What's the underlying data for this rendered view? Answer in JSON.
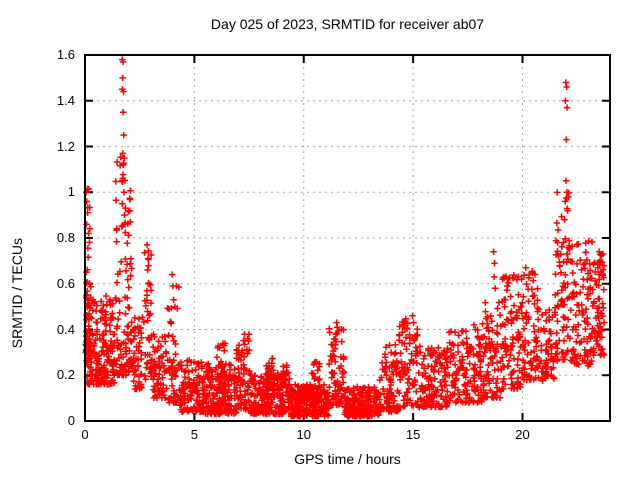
{
  "chart_data": {
    "type": "scatter",
    "title": "Day 025 of 2023, SRMTID for receiver ab07",
    "xlabel": "GPS time / hours",
    "ylabel": "SRMTID / TECUs",
    "xlim": [
      0,
      24
    ],
    "ylim": [
      0,
      1.6
    ],
    "x_ticks": {
      "values": [
        0,
        5,
        10,
        15,
        20
      ],
      "labels": [
        "0",
        "5",
        "10",
        "15",
        "20"
      ]
    },
    "y_ticks": {
      "values": [
        0,
        0.2,
        0.4,
        0.6,
        0.8,
        1.0,
        1.2,
        1.4,
        1.6
      ],
      "labels": [
        "0",
        "0.2",
        "0.4",
        "0.6",
        "0.8",
        "1",
        "1.2",
        "1.4",
        "1.6"
      ]
    },
    "grid": true,
    "legend": "none",
    "marker": "plus",
    "colors": {
      "points": "#ff0000",
      "grid": "#a6a6a6",
      "frame": "#000000",
      "background": "#ffffff",
      "text": "#000000"
    },
    "description": "Dense scatter of red plus markers forming a U-shape: values up to 1.6 TECUs near hours 0-2, a low noisy band of 0.02-0.2 TECUs through hours 5-18, rising again after hour 19 with a spike to ~1.48 near hour 22.",
    "density_bands": [
      {
        "x": [
          0.02,
          0.28
        ],
        "y": [
          0.3,
          1.02
        ],
        "n": 45,
        "skew": 2.4
      },
      {
        "x": [
          0.05,
          1.35
        ],
        "y": [
          0.16,
          0.56
        ],
        "n": 200,
        "skew": 1.7
      },
      {
        "x": [
          1.38,
          2.15
        ],
        "y": [
          0.2,
          1.18
        ],
        "n": 110,
        "skew": 1.9
      },
      {
        "x": [
          2.15,
          2.65
        ],
        "y": [
          0.14,
          0.46
        ],
        "n": 50,
        "skew": 1.5
      },
      {
        "x": [
          2.68,
          3.08
        ],
        "y": [
          0.18,
          0.75
        ],
        "n": 40,
        "skew": 1.6
      },
      {
        "x": [
          3.1,
          3.75
        ],
        "y": [
          0.1,
          0.4
        ],
        "n": 60,
        "skew": 1.6
      },
      {
        "x": [
          3.75,
          4.3
        ],
        "y": [
          0.08,
          0.62
        ],
        "n": 55,
        "skew": 1.8
      },
      {
        "x": [
          4.3,
          5.45
        ],
        "y": [
          0.04,
          0.27
        ],
        "n": 120,
        "skew": 1.7
      },
      {
        "x": [
          5.45,
          6.9
        ],
        "y": [
          0.03,
          0.25
        ],
        "n": 170,
        "skew": 1.6
      },
      {
        "x": [
          6.0,
          6.45
        ],
        "y": [
          0.12,
          0.35
        ],
        "n": 30,
        "skew": 1.5
      },
      {
        "x": [
          6.9,
          7.55
        ],
        "y": [
          0.05,
          0.38
        ],
        "n": 80,
        "skew": 1.7
      },
      {
        "x": [
          7.55,
          9.35
        ],
        "y": [
          0.03,
          0.21
        ],
        "n": 220,
        "skew": 1.5
      },
      {
        "x": [
          8.25,
          8.7
        ],
        "y": [
          0.08,
          0.3
        ],
        "n": 30,
        "skew": 1.4
      },
      {
        "x": [
          9.0,
          9.35
        ],
        "y": [
          0.08,
          0.27
        ],
        "n": 20,
        "skew": 1.4
      },
      {
        "x": [
          9.35,
          11.15
        ],
        "y": [
          0.02,
          0.16
        ],
        "n": 230,
        "skew": 1.4
      },
      {
        "x": [
          10.35,
          10.75
        ],
        "y": [
          0.08,
          0.26
        ],
        "n": 25,
        "skew": 1.4
      },
      {
        "x": [
          11.15,
          11.85
        ],
        "y": [
          0.07,
          0.42
        ],
        "n": 80,
        "skew": 1.7
      },
      {
        "x": [
          11.85,
          13.45
        ],
        "y": [
          0.02,
          0.15
        ],
        "n": 200,
        "skew": 1.4
      },
      {
        "x": [
          13.45,
          14.35
        ],
        "y": [
          0.04,
          0.34
        ],
        "n": 90,
        "skew": 1.6
      },
      {
        "x": [
          14.35,
          15.25
        ],
        "y": [
          0.06,
          0.45
        ],
        "n": 85,
        "skew": 1.6
      },
      {
        "x": [
          15.25,
          16.6
        ],
        "y": [
          0.06,
          0.33
        ],
        "n": 130,
        "skew": 1.6
      },
      {
        "x": [
          16.6,
          18.15
        ],
        "y": [
          0.08,
          0.4
        ],
        "n": 140,
        "skew": 1.5
      },
      {
        "x": [
          18.15,
          19.05
        ],
        "y": [
          0.1,
          0.52
        ],
        "n": 90,
        "skew": 1.5
      },
      {
        "x": [
          19.05,
          20.0
        ],
        "y": [
          0.14,
          0.64
        ],
        "n": 100,
        "skew": 1.5
      },
      {
        "x": [
          20.0,
          20.7
        ],
        "y": [
          0.18,
          0.66
        ],
        "n": 70,
        "skew": 1.4
      },
      {
        "x": [
          20.7,
          21.45
        ],
        "y": [
          0.17,
          0.5
        ],
        "n": 65,
        "skew": 1.4
      },
      {
        "x": [
          21.45,
          22.25
        ],
        "y": [
          0.26,
          1.02
        ],
        "n": 85,
        "skew": 1.7
      },
      {
        "x": [
          22.25,
          23.3
        ],
        "y": [
          0.24,
          0.8
        ],
        "n": 110,
        "skew": 1.4
      },
      {
        "x": [
          23.3,
          23.75
        ],
        "y": [
          0.28,
          0.76
        ],
        "n": 55,
        "skew": 1.3
      }
    ],
    "notable_points": [
      [
        0.05,
        1.0
      ],
      [
        0.08,
        0.96
      ],
      [
        0.12,
        0.91
      ],
      [
        0.07,
        0.86
      ],
      [
        0.16,
        0.82
      ],
      [
        1.7,
        1.58
      ],
      [
        1.74,
        1.57
      ],
      [
        1.72,
        1.5
      ],
      [
        1.7,
        1.45
      ],
      [
        1.76,
        1.44
      ],
      [
        1.74,
        1.35
      ],
      [
        1.77,
        1.25
      ],
      [
        1.73,
        1.17
      ],
      [
        1.75,
        1.12
      ],
      [
        1.72,
        1.06
      ],
      [
        1.78,
        1.0
      ],
      [
        1.7,
        0.95
      ],
      [
        1.8,
        0.9
      ],
      [
        1.68,
        0.85
      ],
      [
        2.84,
        0.77
      ],
      [
        2.88,
        0.71
      ],
      [
        2.86,
        0.66
      ],
      [
        2.9,
        0.6
      ],
      [
        2.83,
        0.55
      ],
      [
        3.98,
        0.64
      ],
      [
        4.02,
        0.59
      ],
      [
        4.05,
        0.53
      ],
      [
        11.5,
        0.43
      ],
      [
        11.53,
        0.41
      ],
      [
        11.47,
        0.38
      ],
      [
        14.97,
        0.46
      ],
      [
        15.02,
        0.43
      ],
      [
        17.78,
        0.42
      ],
      [
        17.85,
        0.4
      ],
      [
        18.68,
        0.74
      ],
      [
        18.72,
        0.69
      ],
      [
        18.7,
        0.63
      ],
      [
        18.75,
        0.58
      ],
      [
        20.15,
        0.67
      ],
      [
        20.3,
        0.64
      ],
      [
        21.98,
        1.48
      ],
      [
        22.02,
        1.46
      ],
      [
        21.96,
        1.4
      ],
      [
        22.04,
        1.37
      ],
      [
        22.0,
        1.23
      ],
      [
        21.99,
        1.05
      ],
      [
        22.03,
        1.0
      ],
      [
        21.95,
        0.96
      ],
      [
        22.06,
        0.92
      ],
      [
        21.92,
        0.88
      ],
      [
        23.5,
        0.74
      ],
      [
        23.55,
        0.7
      ],
      [
        23.45,
        0.67
      ]
    ]
  }
}
